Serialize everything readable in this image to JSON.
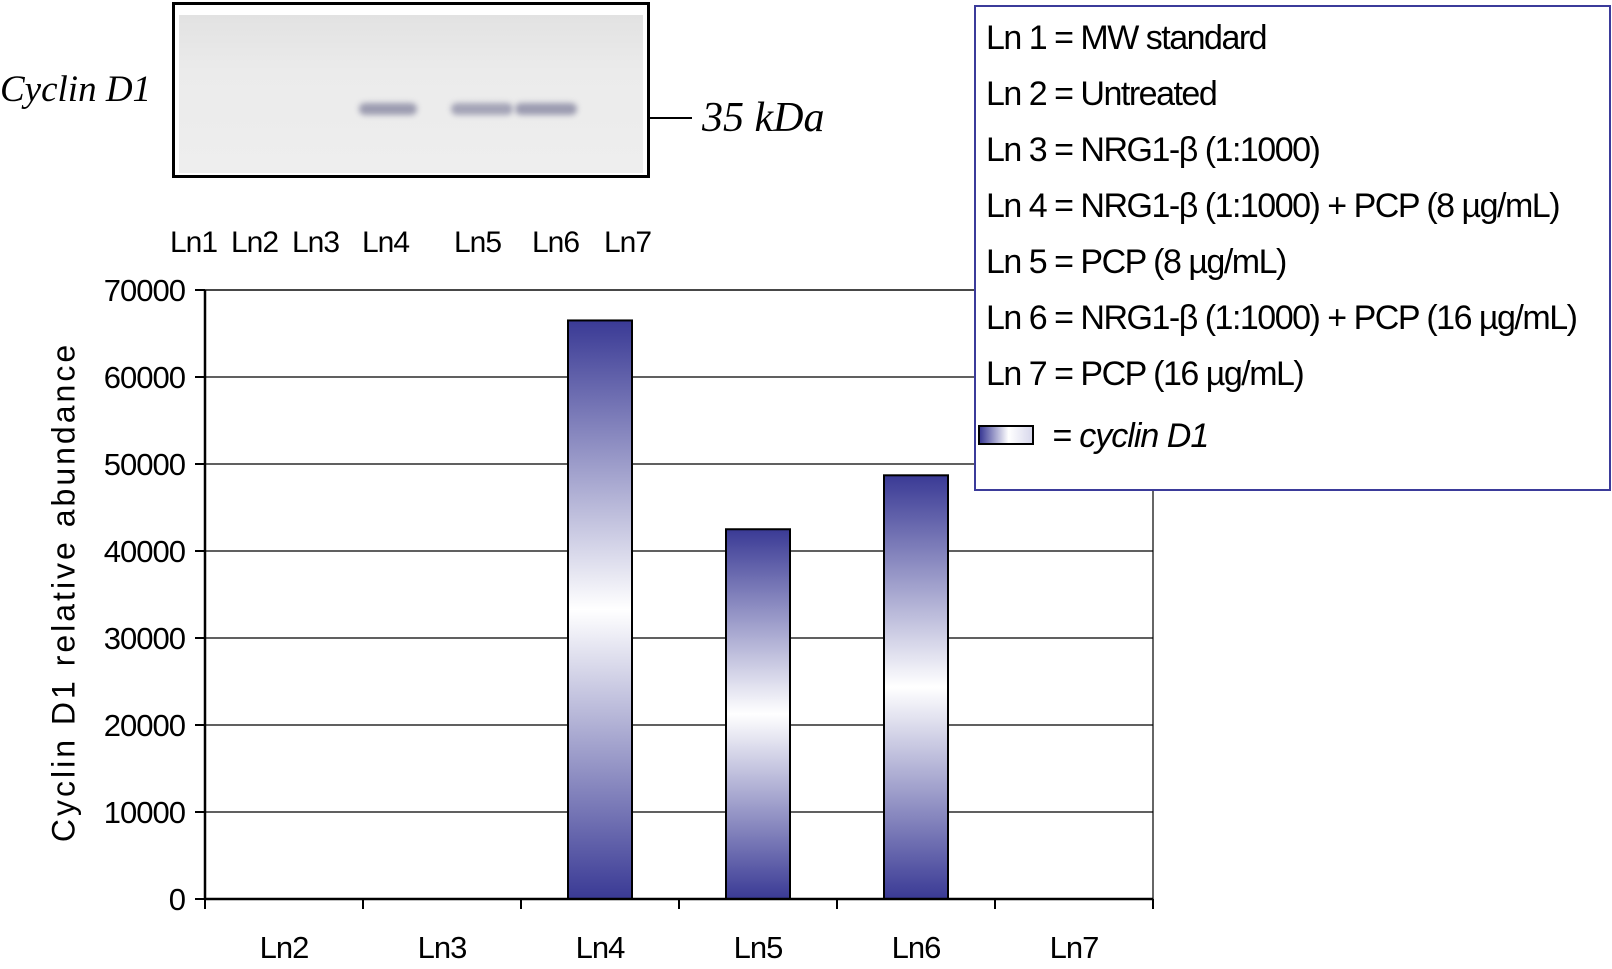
{
  "blot": {
    "protein_label": "Cyclin D1",
    "marker_label": "35 kDa",
    "lanes": [
      "Ln1",
      "Ln2",
      "Ln3",
      "Ln4",
      "Ln5",
      "Ln6",
      "Ln7"
    ]
  },
  "legend": {
    "entries": [
      "Ln 1 = MW standard",
      "Ln 2 = Untreated",
      "Ln 3 = NRG1-β (1:1000)",
      "Ln 4 = NRG1-β (1:1000) + PCP (8 µg/mL)",
      "Ln 5 = PCP (8 µg/mL)",
      "Ln 6 = NRG1-β (1:1000) + PCP (16 µg/mL)",
      "Ln 7 = PCP (16 µg/mL)"
    ],
    "swatch_label": "= cyclin D1"
  },
  "chart_data": {
    "type": "bar",
    "categories": [
      "Ln2",
      "Ln3",
      "Ln4",
      "Ln5",
      "Ln6",
      "Ln7"
    ],
    "series": [
      {
        "name": "cyclin D1",
        "values": [
          0,
          0,
          66500,
          42500,
          48700,
          0
        ]
      }
    ],
    "ylabel": "Cyclin D1 relative abundance",
    "xlabel": "",
    "ylim": [
      0,
      70000
    ],
    "yticks": [
      "0",
      "10000",
      "20000",
      "30000",
      "40000",
      "50000",
      "60000",
      "70000"
    ],
    "grid": true,
    "legend_position": "top-right",
    "colors": {
      "bar_dark": "#3a3a95",
      "bar_light": "#ffffff",
      "grid": "#000000"
    }
  }
}
